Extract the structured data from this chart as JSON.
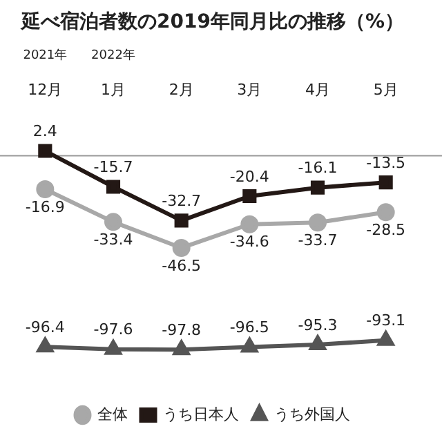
{
  "chart_data": {
    "type": "line",
    "title": "延べ宿泊者数の2019年同月比の推移（%）",
    "categories": [
      "12月",
      "1月",
      "2月",
      "3月",
      "4月",
      "5月"
    ],
    "series": [
      {
        "name": "全体",
        "color": "#a8a8a8",
        "marker": "circle",
        "values": [
          -16.9,
          -33.4,
          -46.5,
          -34.6,
          -33.7,
          -28.5
        ]
      },
      {
        "name": "うち日本人",
        "color": "#231815",
        "marker": "square",
        "values": [
          2.4,
          -15.7,
          -32.7,
          -20.4,
          -16.1,
          -13.5
        ]
      },
      {
        "name": "うち外国人",
        "color": "#555555",
        "marker": "triangle",
        "values": [
          -96.4,
          -97.6,
          -97.8,
          -96.5,
          -95.3,
          -93.1
        ]
      }
    ],
    "tick_labels": "x",
    "grid": false,
    "legend": "bottom",
    "data_labels": true,
    "ref_lines": [
      {
        "axis": "y",
        "value": 0,
        "color": "#999999"
      }
    ],
    "annotations": [
      "2021年",
      "2022年"
    ]
  }
}
